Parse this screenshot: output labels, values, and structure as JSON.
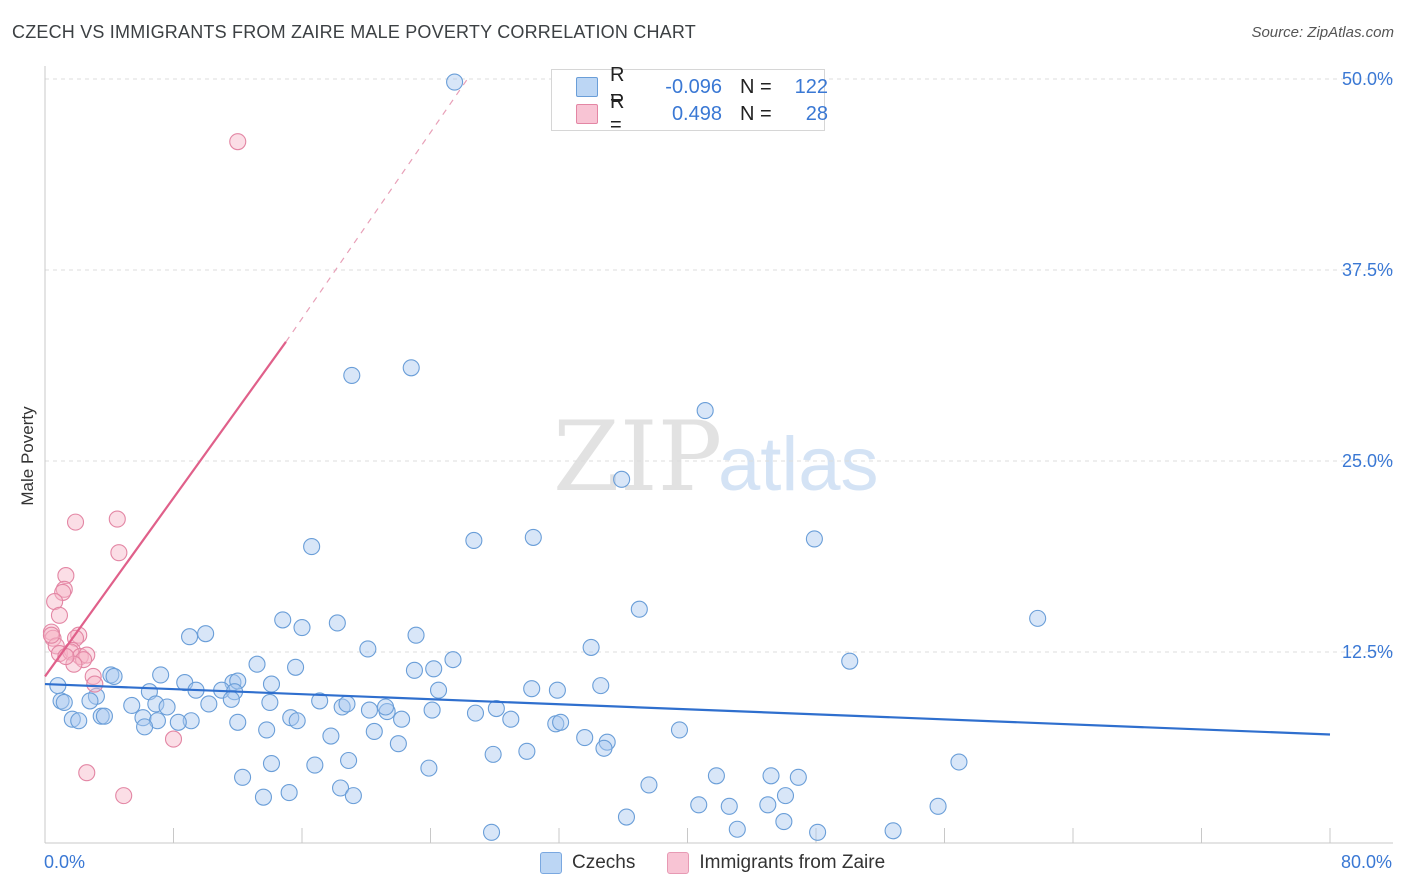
{
  "title": "CZECH VS IMMIGRANTS FROM ZAIRE MALE POVERTY CORRELATION CHART",
  "source": "Source: ZipAtlas.com",
  "watermark": {
    "zip": "ZIP",
    "atlas": "atlas"
  },
  "legend": {
    "rows": [
      {
        "r_label": "R =",
        "r_value": "-0.096",
        "n_label": "N =",
        "n_value": "122",
        "color": "#a8c8f0",
        "border": "#6a9ed8"
      },
      {
        "r_label": "R =",
        "r_value": "0.498",
        "n_label": "N =",
        "n_value": "28",
        "color": "#f6b6c8",
        "border": "#e386a4"
      }
    ]
  },
  "bottom_legend": [
    {
      "label": "Czechs",
      "color": "#bcd6f4",
      "border": "#7aa8e0"
    },
    {
      "label": "Immigrants from Zaire",
      "color": "#f8c4d4",
      "border": "#e79ab4"
    }
  ],
  "chart_data": {
    "type": "scatter",
    "title": "CZECH VS IMMIGRANTS FROM ZAIRE MALE POVERTY CORRELATION CHART",
    "xlabel": "",
    "ylabel": "Male Poverty",
    "xlim": [
      0,
      80
    ],
    "ylim": [
      0,
      50
    ],
    "x_tick_labels": [
      "0.0%",
      "80.0%"
    ],
    "y_ticks": [
      12.5,
      25.0,
      37.5,
      50.0
    ],
    "y_tick_labels": [
      "12.5%",
      "25.0%",
      "37.5%",
      "50.0%"
    ],
    "grid": true,
    "series": [
      {
        "name": "Czechs",
        "color": "#6a9ed8",
        "trend": {
          "x": [
            0,
            80
          ],
          "y": [
            10.4,
            7.1
          ],
          "style": "solid"
        },
        "points": [
          [
            25.5,
            49.8
          ],
          [
            19.1,
            30.6
          ],
          [
            22.8,
            31.1
          ],
          [
            41.1,
            28.3
          ],
          [
            35.9,
            23.8
          ],
          [
            16.6,
            19.4
          ],
          [
            26.7,
            19.8
          ],
          [
            30.4,
            20.0
          ],
          [
            47.9,
            19.9
          ],
          [
            37.0,
            15.3
          ],
          [
            61.8,
            14.7
          ],
          [
            14.8,
            14.6
          ],
          [
            16.0,
            14.1
          ],
          [
            18.2,
            14.4
          ],
          [
            10.0,
            13.7
          ],
          [
            9.0,
            13.5
          ],
          [
            23.1,
            13.6
          ],
          [
            34.0,
            12.8
          ],
          [
            20.1,
            12.7
          ],
          [
            25.4,
            12.0
          ],
          [
            24.2,
            11.4
          ],
          [
            23.0,
            11.3
          ],
          [
            13.2,
            11.7
          ],
          [
            15.6,
            11.5
          ],
          [
            50.1,
            11.9
          ],
          [
            4.1,
            11.0
          ],
          [
            4.3,
            10.9
          ],
          [
            7.2,
            11.0
          ],
          [
            8.7,
            10.5
          ],
          [
            11.7,
            10.5
          ],
          [
            12.0,
            10.6
          ],
          [
            14.1,
            10.4
          ],
          [
            9.4,
            10.0
          ],
          [
            6.5,
            9.9
          ],
          [
            11.0,
            10.0
          ],
          [
            11.8,
            9.9
          ],
          [
            24.5,
            10.0
          ],
          [
            30.3,
            10.1
          ],
          [
            31.9,
            10.0
          ],
          [
            34.6,
            10.3
          ],
          [
            3.2,
            9.6
          ],
          [
            2.8,
            9.3
          ],
          [
            5.4,
            9.0
          ],
          [
            6.9,
            9.1
          ],
          [
            7.6,
            8.9
          ],
          [
            10.2,
            9.1
          ],
          [
            11.6,
            9.4
          ],
          [
            14.0,
            9.2
          ],
          [
            17.1,
            9.3
          ],
          [
            18.5,
            8.9
          ],
          [
            20.2,
            8.7
          ],
          [
            21.3,
            8.6
          ],
          [
            18.8,
            9.1
          ],
          [
            21.2,
            8.9
          ],
          [
            28.1,
            8.8
          ],
          [
            24.1,
            8.7
          ],
          [
            26.8,
            8.5
          ],
          [
            22.2,
            8.1
          ],
          [
            1.0,
            9.3
          ],
          [
            1.2,
            9.2
          ],
          [
            0.8,
            10.3
          ],
          [
            3.5,
            8.3
          ],
          [
            3.7,
            8.3
          ],
          [
            1.7,
            8.1
          ],
          [
            2.1,
            8.0
          ],
          [
            6.1,
            8.2
          ],
          [
            7.0,
            8.0
          ],
          [
            9.1,
            8.0
          ],
          [
            6.2,
            7.6
          ],
          [
            8.3,
            7.9
          ],
          [
            12.0,
            7.9
          ],
          [
            15.3,
            8.2
          ],
          [
            15.7,
            8.0
          ],
          [
            29.0,
            8.1
          ],
          [
            31.8,
            7.8
          ],
          [
            32.1,
            7.9
          ],
          [
            13.8,
            7.4
          ],
          [
            17.8,
            7.0
          ],
          [
            20.5,
            7.3
          ],
          [
            22.0,
            6.5
          ],
          [
            33.6,
            6.9
          ],
          [
            35.0,
            6.6
          ],
          [
            34.8,
            6.2
          ],
          [
            39.5,
            7.4
          ],
          [
            23.9,
            4.9
          ],
          [
            27.9,
            5.8
          ],
          [
            30.0,
            6.0
          ],
          [
            18.9,
            5.4
          ],
          [
            16.8,
            5.1
          ],
          [
            14.1,
            5.2
          ],
          [
            12.3,
            4.3
          ],
          [
            41.8,
            4.4
          ],
          [
            45.2,
            4.4
          ],
          [
            46.9,
            4.3
          ],
          [
            56.9,
            5.3
          ],
          [
            37.6,
            3.8
          ],
          [
            18.4,
            3.6
          ],
          [
            15.2,
            3.3
          ],
          [
            19.2,
            3.1
          ],
          [
            13.6,
            3.0
          ],
          [
            40.7,
            2.5
          ],
          [
            42.6,
            2.4
          ],
          [
            45.0,
            2.5
          ],
          [
            46.1,
            3.1
          ],
          [
            55.6,
            2.4
          ],
          [
            36.2,
            1.7
          ],
          [
            27.8,
            0.7
          ],
          [
            43.1,
            0.9
          ],
          [
            46.0,
            1.4
          ],
          [
            48.1,
            0.7
          ],
          [
            52.8,
            0.8
          ]
        ]
      },
      {
        "name": "Immigrants from Zaire",
        "color": "#e386a4",
        "trend": {
          "x": [
            0,
            15.0
          ],
          "y": [
            10.9,
            32.8
          ],
          "style": "solid",
          "extended_to": [
            26.3,
            50.0
          ],
          "extended_style": "dashed"
        },
        "points": [
          [
            12.0,
            45.9
          ],
          [
            1.9,
            21.0
          ],
          [
            4.5,
            21.2
          ],
          [
            4.6,
            19.0
          ],
          [
            1.3,
            17.5
          ],
          [
            1.2,
            16.6
          ],
          [
            1.1,
            16.4
          ],
          [
            0.6,
            15.8
          ],
          [
            0.9,
            14.9
          ],
          [
            0.4,
            13.8
          ],
          [
            0.5,
            13.4
          ],
          [
            0.7,
            12.9
          ],
          [
            0.4,
            13.6
          ],
          [
            0.9,
            12.4
          ],
          [
            2.1,
            13.6
          ],
          [
            1.9,
            13.4
          ],
          [
            1.7,
            12.6
          ],
          [
            1.6,
            12.5
          ],
          [
            2.2,
            12.2
          ],
          [
            2.6,
            12.3
          ],
          [
            2.4,
            12.0
          ],
          [
            1.8,
            11.7
          ],
          [
            1.3,
            12.2
          ],
          [
            3.0,
            10.9
          ],
          [
            3.1,
            10.4
          ],
          [
            8.0,
            6.8
          ],
          [
            2.6,
            4.6
          ],
          [
            4.9,
            3.1
          ]
        ]
      }
    ]
  }
}
